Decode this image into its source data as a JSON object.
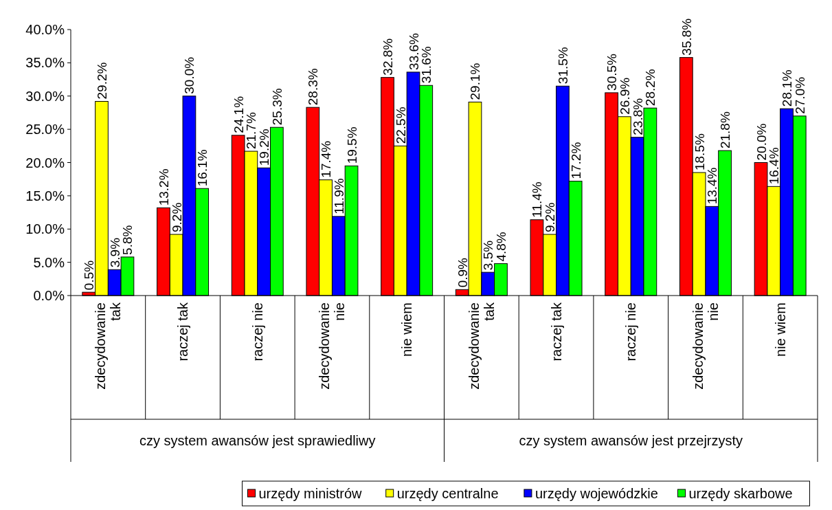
{
  "chart_data": {
    "type": "bar",
    "categories": [
      "zdecydowanie\ntak",
      "raczej tak",
      "raczej nie",
      "zdecydowanie\nnie",
      "nie wiem",
      "zdecydowanie\ntak",
      "raczej tak",
      "raczej nie",
      "zdecydowanie\nnie",
      "nie wiem"
    ],
    "annotations": [
      "czy system awansów jest sprawiedliwy",
      "czy system awansów jest przejrzysty"
    ],
    "series": [
      {
        "name": "urzędy ministrów",
        "color": "#ff0000",
        "values": [
          0.5,
          13.2,
          24.1,
          28.3,
          32.8,
          0.9,
          11.4,
          30.5,
          35.8,
          20.0
        ],
        "value_labels": [
          "0.5%",
          "13.2%",
          "24.1%",
          "28.3%",
          "32.8%",
          "0.9%",
          "11.4%",
          "30.5%",
          "35.8%",
          "20.0%"
        ]
      },
      {
        "name": "urzędy centralne",
        "color": "#ffff00",
        "values": [
          29.2,
          9.2,
          21.7,
          17.4,
          22.5,
          29.1,
          9.2,
          26.9,
          18.5,
          16.4
        ],
        "value_labels": [
          "29.2%",
          "9.2%",
          "21.7%",
          "17.4%",
          "22.5%",
          "29.1%",
          "9.2%",
          "26.9%",
          "18.5%",
          "16.4%"
        ]
      },
      {
        "name": "urzędy wojewódzkie",
        "color": "#0000ff",
        "values": [
          3.9,
          30.0,
          19.2,
          11.9,
          33.6,
          3.5,
          31.5,
          23.8,
          13.4,
          28.1
        ],
        "value_labels": [
          "3.9%",
          "30.0%",
          "19.2%",
          "11.9%",
          "33.6%",
          "3.5%",
          "31.5%",
          "23.8%",
          "13.4%",
          "28.1%"
        ]
      },
      {
        "name": "urzędy skarbowe",
        "color": "#00ff00",
        "values": [
          5.8,
          16.1,
          25.3,
          19.5,
          31.6,
          4.8,
          17.2,
          28.2,
          21.8,
          27.0
        ],
        "value_labels": [
          "5.8%",
          "16.1%",
          "25.3%",
          "19.5%",
          "31.6%",
          "4.8%",
          "17.2%",
          "28.2%",
          "21.8%",
          "27.0%"
        ]
      }
    ],
    "ylim": [
      0,
      40
    ],
    "yticks": [
      {
        "value": 0,
        "label": "0.0%"
      },
      {
        "value": 5,
        "label": "5.0%"
      },
      {
        "value": 10,
        "label": "10.0%"
      },
      {
        "value": 15,
        "label": "15.0%"
      },
      {
        "value": 20,
        "label": "20.0%"
      },
      {
        "value": 25,
        "label": "25.0%"
      },
      {
        "value": 30,
        "label": "30.0%"
      },
      {
        "value": 35,
        "label": "35.0%"
      },
      {
        "value": 40,
        "label": "40.0%"
      }
    ],
    "grid": false,
    "legend": "bottom"
  }
}
